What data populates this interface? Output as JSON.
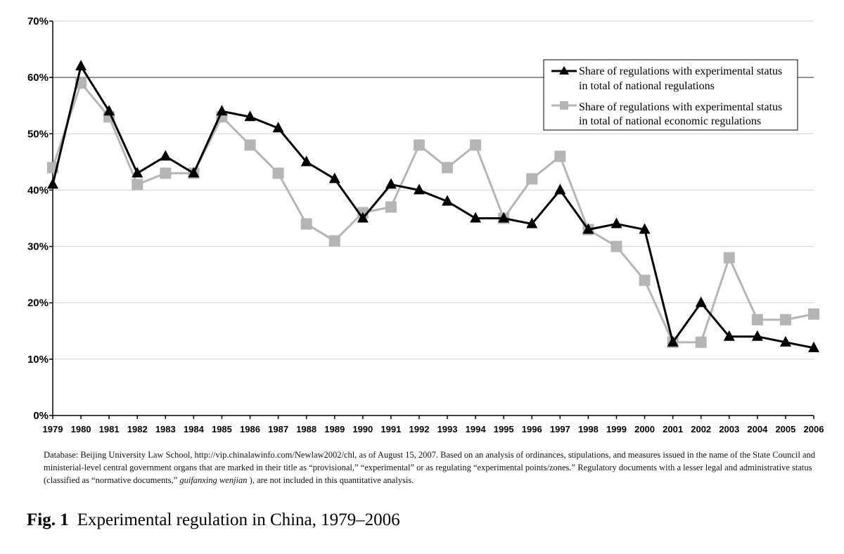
{
  "chart_data": {
    "type": "line",
    "title": "",
    "xlabel": "",
    "ylabel": "",
    "ylim": [
      0,
      70
    ],
    "y_ticks": [
      0,
      10,
      20,
      30,
      40,
      50,
      60,
      70
    ],
    "y_tick_labels": [
      "0%",
      "10%",
      "20%",
      "30%",
      "40%",
      "50%",
      "60%",
      "70%"
    ],
    "grid": true,
    "legend_position": "top-right",
    "categories": [
      "1979",
      "1980",
      "1981",
      "1982",
      "1983",
      "1984",
      "1985",
      "1986",
      "1987",
      "1988",
      "1989",
      "1990",
      "1991",
      "1992",
      "1993",
      "1994",
      "1995",
      "1996",
      "1997",
      "1998",
      "1999",
      "2000",
      "2001",
      "2002",
      "2003",
      "2004",
      "2005",
      "2006"
    ],
    "series": [
      {
        "name": "Share of regulations with experimental status in total of national regulations",
        "legend_line1": "Share of regulations with experimental status",
        "legend_line2": "in total of national regulations",
        "marker": "triangle",
        "color": "#000000",
        "values": [
          41,
          62,
          54,
          43,
          46,
          43,
          54,
          53,
          51,
          45,
          42,
          35,
          41,
          40,
          38,
          35,
          35,
          34,
          40,
          33,
          34,
          33,
          13,
          20,
          14,
          14,
          13,
          12
        ]
      },
      {
        "name": "Share of regulations with experimental status in total of national economic regulations",
        "legend_line1": "Share of regulations with experimental status",
        "legend_line2": "in total of national economic regulations",
        "marker": "square",
        "color": "#b5b5b5",
        "values": [
          44,
          59,
          53,
          41,
          43,
          43,
          53,
          48,
          43,
          34,
          31,
          36,
          37,
          48,
          44,
          48,
          35,
          42,
          46,
          33,
          30,
          24,
          13,
          13,
          28,
          17,
          17,
          18
        ]
      }
    ]
  },
  "note": {
    "text_before_italic": "Database: Beijing University Law School, http://vip.chinalawinfo.com/Newlaw2002/chl, as of August 15, 2007. Based on an analysis of ordinances, stipulations, and measures issued in the name of the State Council and ministerial-level central government organs that are marked in their title as “provisional,” “experimental” or as regulating “experimental points/zones.” Regulatory documents with a lesser legal and administrative status (classified as “normative documents,”",
    "italic": "guifanxing wenjian",
    "text_after_italic": "), are not included in this quantitative analysis."
  },
  "caption": {
    "label": "Fig. 1",
    "text": "Experimental regulation in China, 1979–2006"
  }
}
